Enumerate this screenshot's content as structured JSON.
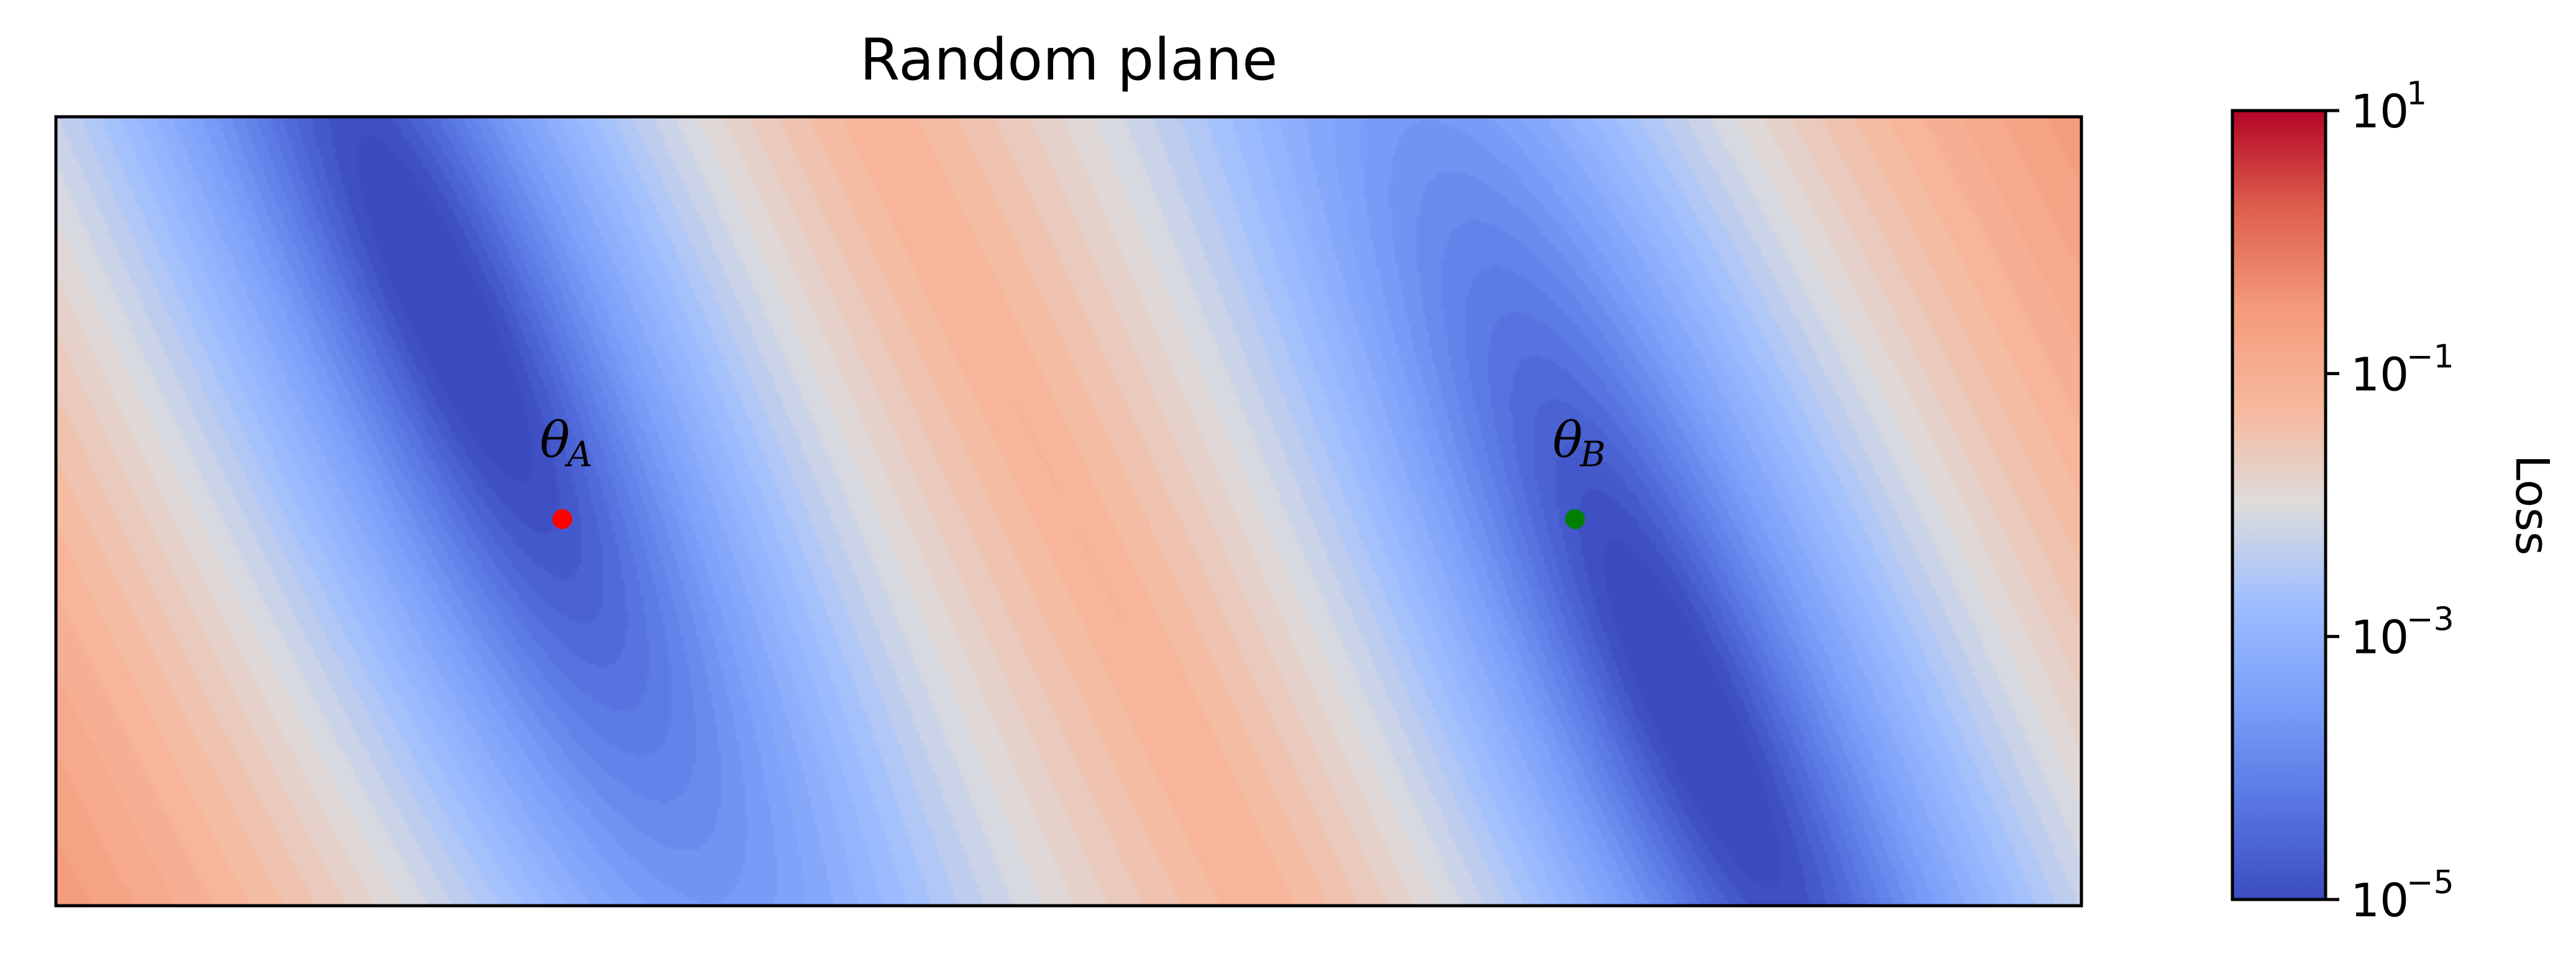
{
  "chart_data": {
    "type": "heatmap",
    "title": "Random plane",
    "xlabel": "",
    "ylabel": "",
    "x_ticks_shown": false,
    "y_ticks_shown": false,
    "colormap": "coolwarm",
    "colorbar": {
      "label": "Loss",
      "scale": "log",
      "range": [
        1e-05,
        10
      ],
      "ticks": [
        {
          "value": 1e-05,
          "base": "10",
          "exp": "−5"
        },
        {
          "value": 0.001,
          "base": "10",
          "exp": "−3"
        },
        {
          "value": 0.1,
          "base": "10",
          "exp": "−1"
        },
        {
          "value": 10,
          "base": "10",
          "exp": "1"
        }
      ]
    },
    "points": [
      {
        "name": "θ",
        "sub": "A",
        "u": 0.25,
        "v": 0.51,
        "color": "#ff0000"
      },
      {
        "name": "θ",
        "sub": "B",
        "u": 0.75,
        "v": 0.51,
        "color": "#008000"
      }
    ]
  }
}
